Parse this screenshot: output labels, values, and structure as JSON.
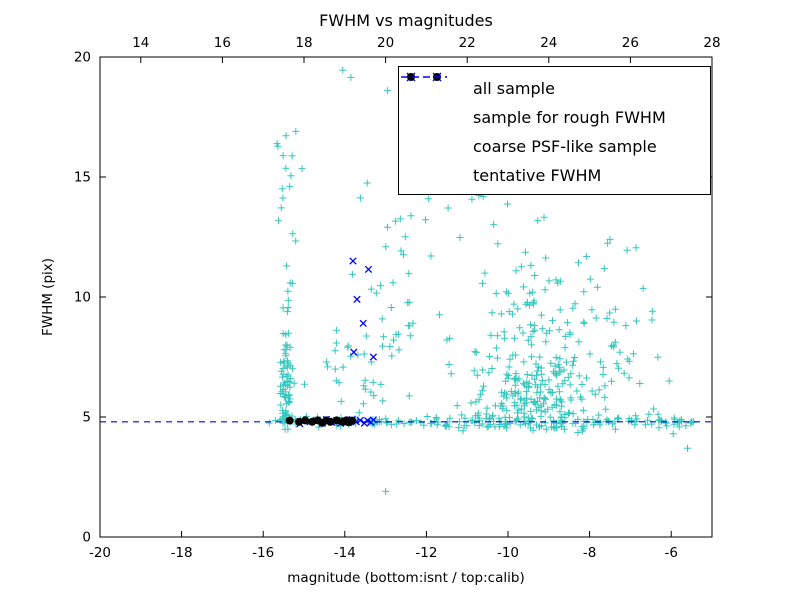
{
  "chart_data": {
    "type": "scatter",
    "title": "FWHM vs magnitudes",
    "xlabel": "magnitude (bottom:isnt / top:calib)",
    "ylabel": "FWHM (pix)",
    "xlim": [
      -20,
      -5
    ],
    "xlim_top": [
      13,
      28
    ],
    "ylim": [
      0,
      20
    ],
    "xticks_bottom": [
      -20,
      -18,
      -16,
      -14,
      -12,
      -10,
      -8,
      -6
    ],
    "xticks_top": [
      14,
      16,
      18,
      20,
      22,
      24,
      26,
      28
    ],
    "yticks": [
      0,
      5,
      10,
      15,
      20
    ],
    "grid": false,
    "legend_position": "upper right",
    "tentative_fwhm": 4.8,
    "seed": 1234,
    "series": [
      {
        "name": "all sample",
        "marker": "plus",
        "color": "#35c6bd",
        "size": 3.5,
        "points": [
          [
            -14.05,
            19.45
          ],
          [
            -13.85,
            19.15
          ],
          [
            -12.95,
            18.6
          ],
          [
            -15.2,
            16.9
          ],
          [
            -15.05,
            15.35
          ],
          [
            -15.32,
            15.05
          ],
          [
            -13.0,
            1.9
          ],
          [
            -5.6,
            3.7
          ],
          [
            -5.95,
            4.3
          ],
          [
            -6.3,
            4.55
          ],
          [
            -6.05,
            6.5
          ],
          [
            -5.45,
            4.8
          ],
          [
            -10.35,
            16.35
          ],
          [
            -8.2,
            15.1
          ],
          [
            -7.5,
            12.4
          ],
          [
            -6.85,
            9.0
          ],
          [
            -15.85,
            4.75
          ],
          [
            -15.7,
            4.85
          ],
          [
            -12.2,
            16.2
          ],
          [
            -11.7,
            15.7
          ]
        ],
        "clusters": [
          {
            "n": 70,
            "x": [
              "g",
              -15.45,
              0.09
            ],
            "y": [
              "g",
              6.2,
              1.3
            ],
            "ymin": 4.45,
            "ymax": 9.8
          },
          {
            "n": 20,
            "x": [
              "g",
              -15.42,
              0.1
            ],
            "y": [
              "u",
              8.6,
              17.0
            ]
          },
          {
            "n": 55,
            "x": [
              "u",
              -15.55,
              -12.0
            ],
            "y": [
              "g",
              4.82,
              0.1
            ]
          },
          {
            "n": 125,
            "x": [
              "u",
              -12.0,
              -5.35
            ],
            "y": [
              "g",
              4.78,
              0.13
            ]
          },
          {
            "n": 150,
            "x": [
              "g",
              -9.35,
              0.8
            ],
            "y": [
              "g",
              5.7,
              0.85
            ],
            "ymin": 4.35
          },
          {
            "n": 145,
            "x": [
              "g",
              -9.15,
              1.05
            ],
            "y": [
              "g",
              8.4,
              2.2
            ],
            "ymin": 4.5,
            "ymax": 15.6
          },
          {
            "n": 35,
            "x": [
              "g",
              -12.85,
              0.55
            ],
            "y": [
              "g",
              10.2,
              2.3
            ],
            "ymin": 6.2,
            "ymax": 15.4
          },
          {
            "n": 30,
            "x": [
              "g",
              -13.6,
              0.55
            ],
            "y": [
              "g",
              7.0,
              1.2
            ],
            "ymin": 4.9,
            "ymax": 10.5
          },
          {
            "n": 16,
            "x": [
              "u",
              -12.4,
              -9.4
            ],
            "y": [
              "u",
              13.0,
              16.6
            ]
          },
          {
            "n": 14,
            "x": [
              "u",
              -7.7,
              -6.3
            ],
            "y": [
              "u",
              4.6,
              9.5
            ]
          },
          {
            "n": 10,
            "x": [
              "g",
              -10.4,
              0.5
            ],
            "y": [
              "u",
              14.0,
              16.5
            ]
          }
        ]
      },
      {
        "name": "sample for rough FWHM",
        "marker": "x",
        "color": "#0000ff",
        "size": 3.2,
        "points": [
          [
            -15.1,
            4.72
          ],
          [
            -14.85,
            4.8
          ],
          [
            -14.7,
            4.86
          ],
          [
            -14.55,
            4.74
          ],
          [
            -14.45,
            4.9
          ],
          [
            -14.32,
            4.78
          ],
          [
            -14.2,
            4.86
          ],
          [
            -14.1,
            4.74
          ],
          [
            -14.0,
            4.85
          ],
          [
            -13.9,
            4.78
          ],
          [
            -13.82,
            4.9
          ],
          [
            -13.72,
            4.8
          ],
          [
            -13.62,
            4.86
          ],
          [
            -13.52,
            4.74
          ],
          [
            -13.44,
            4.85
          ],
          [
            -13.36,
            4.78
          ],
          [
            -13.3,
            4.88
          ],
          [
            -13.8,
            11.5
          ],
          [
            -13.42,
            11.15
          ],
          [
            -13.7,
            9.9
          ],
          [
            -13.55,
            8.9
          ],
          [
            -13.78,
            7.7
          ],
          [
            -13.3,
            7.5
          ]
        ]
      },
      {
        "name": "coarse PSF-like sample",
        "marker": "dot",
        "color": "#000000",
        "size": 4,
        "points": [
          [
            -15.35,
            4.85
          ],
          [
            -15.12,
            4.8
          ],
          [
            -14.97,
            4.86
          ],
          [
            -14.8,
            4.8
          ],
          [
            -14.66,
            4.86
          ],
          [
            -14.55,
            4.76
          ],
          [
            -14.45,
            4.86
          ],
          [
            -14.35,
            4.8
          ],
          [
            -14.2,
            4.86
          ],
          [
            -14.05,
            4.8
          ],
          [
            -13.96,
            4.86
          ],
          [
            -13.9,
            4.78
          ],
          [
            -13.82,
            4.85
          ]
        ]
      },
      {
        "name": "tentative FWHM",
        "marker": "dashed-line",
        "color": "#0000ff",
        "y": 4.8
      }
    ]
  }
}
